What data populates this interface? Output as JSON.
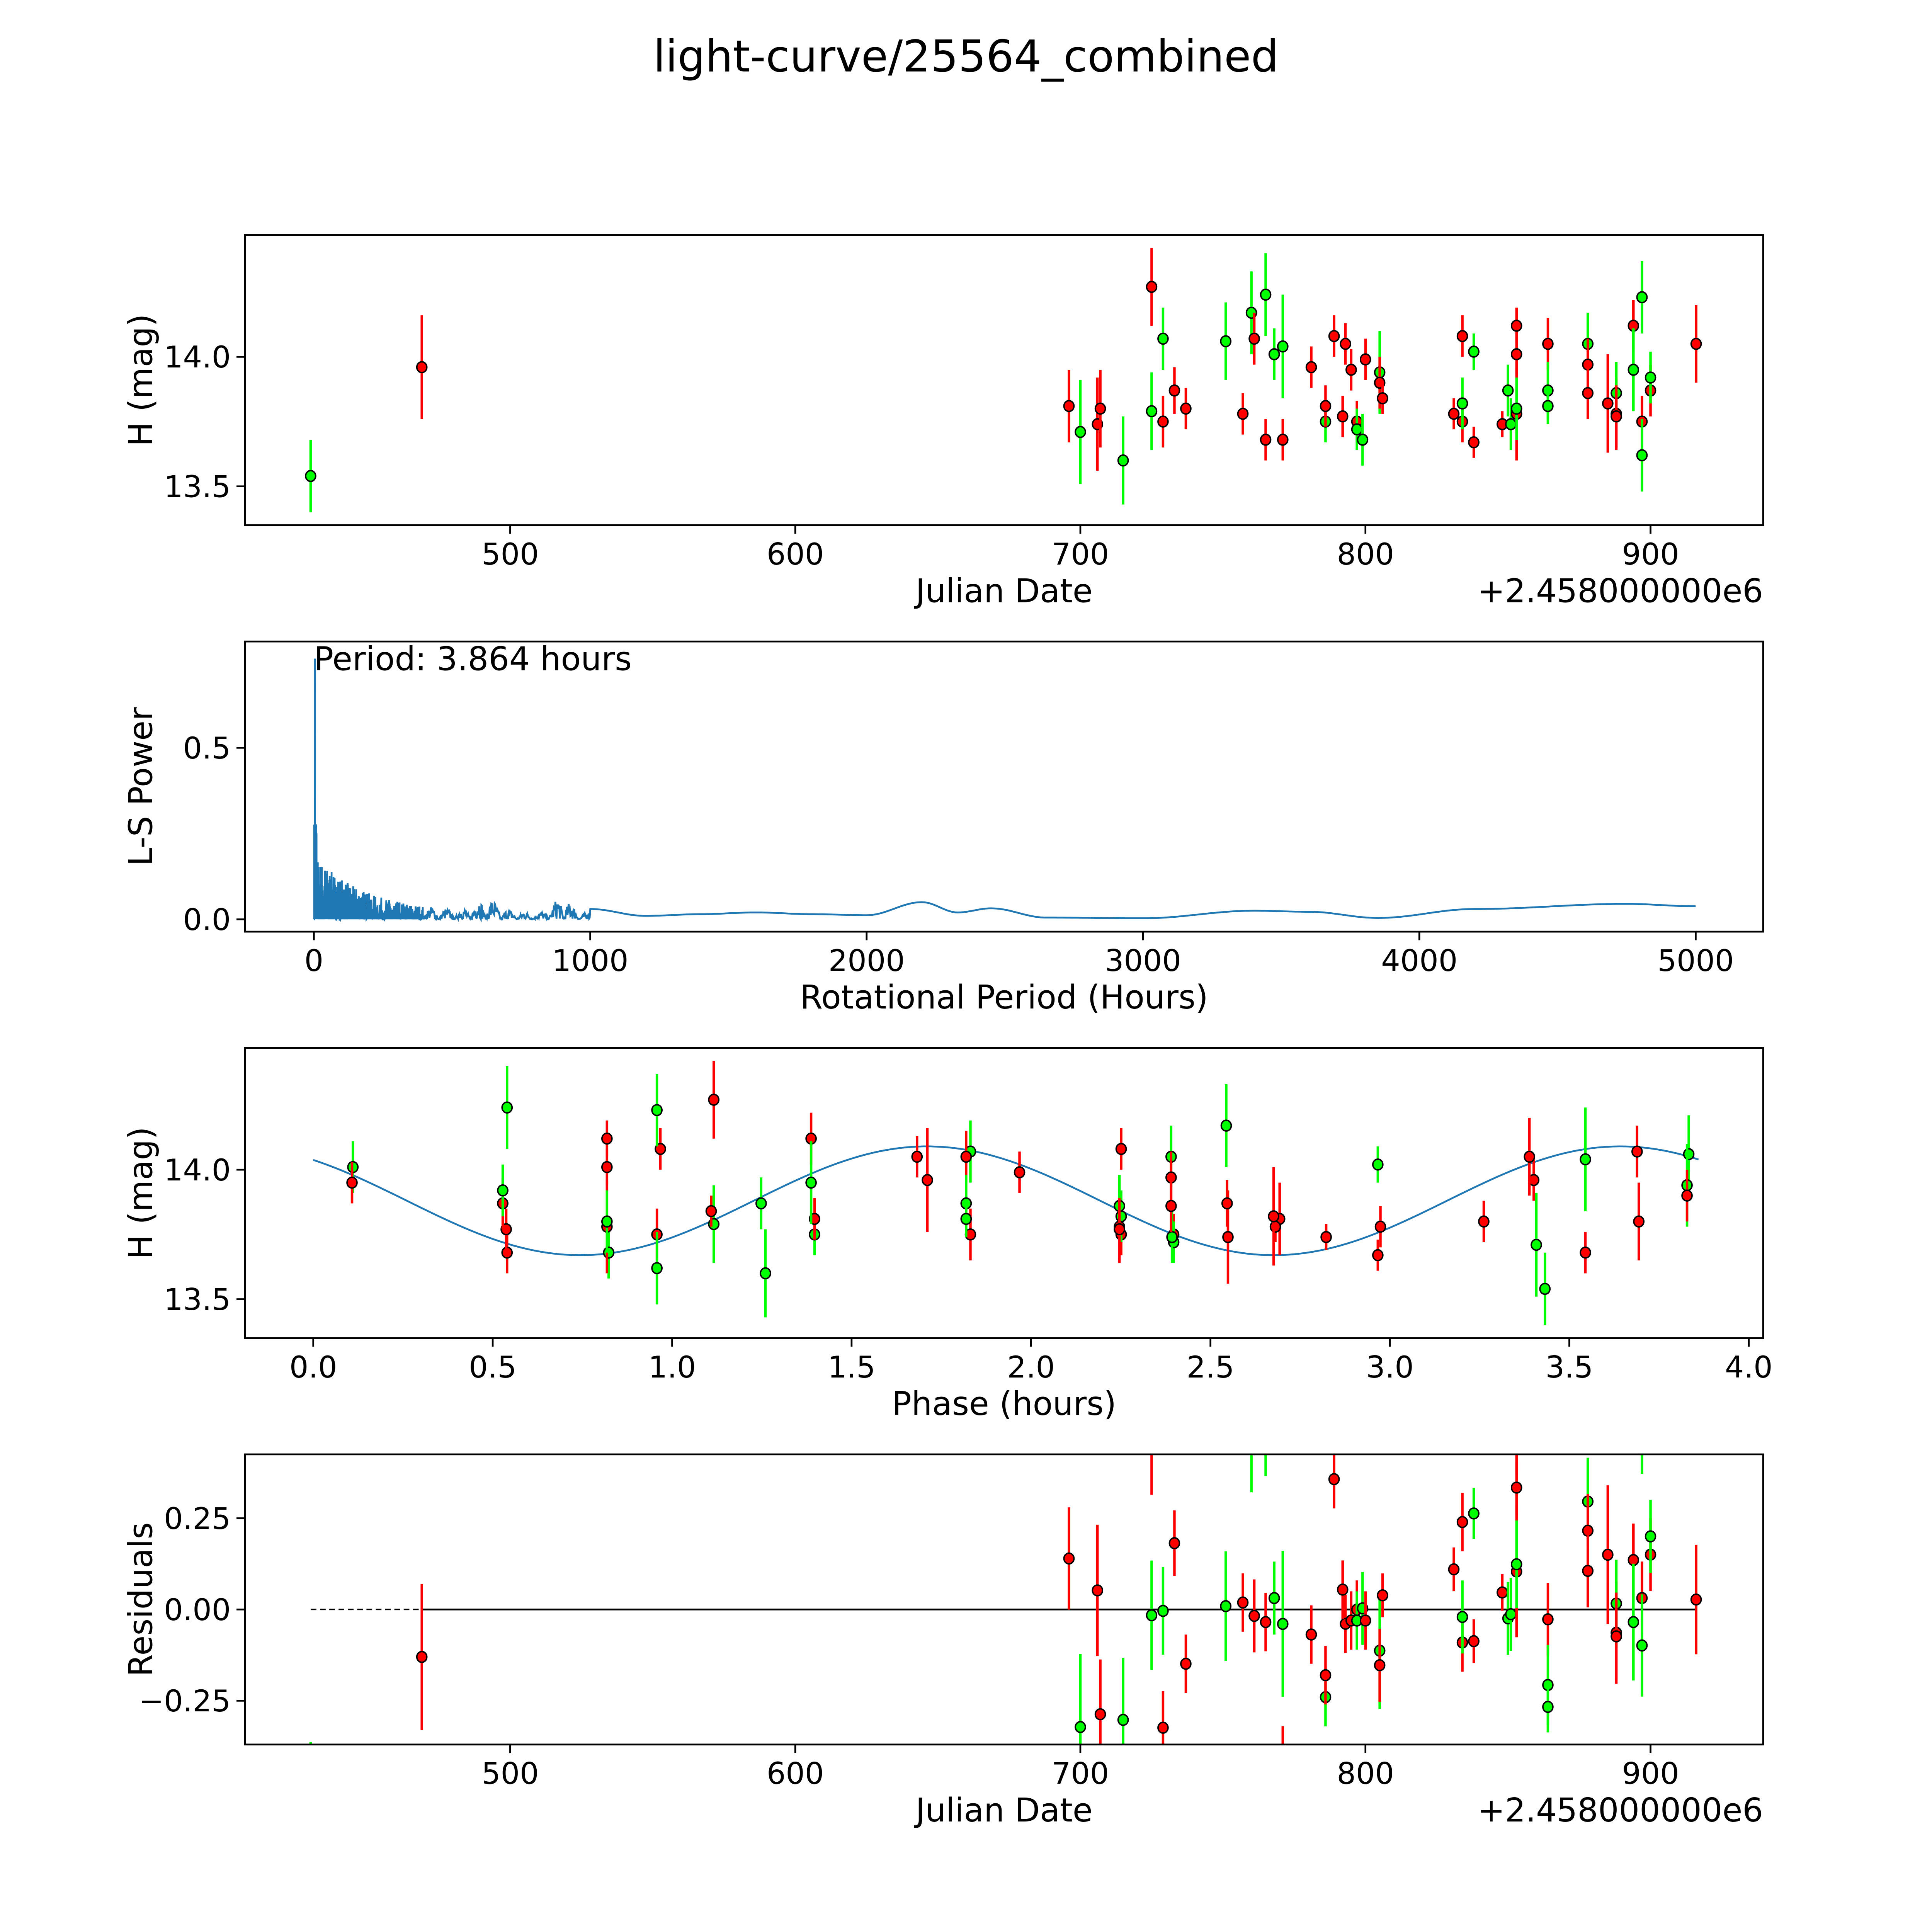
{
  "chart_data": {
    "type": "scatter",
    "title": "light-curve/25564_combined",
    "colors": {
      "r": "#ff0000",
      "g": "#00ff00",
      "model": "#1f77b4",
      "edge": "#000000"
    },
    "observations_note_format": "[julian_date_minus_offset, H_mag, error, filter_color]",
    "observations": [
      [
        430,
        13.54,
        0.14,
        "g"
      ],
      [
        469,
        13.96,
        0.2,
        "r"
      ],
      [
        696,
        13.81,
        0.14,
        "r"
      ],
      [
        700,
        13.71,
        0.2,
        "g"
      ],
      [
        706,
        13.74,
        0.18,
        "r"
      ],
      [
        707,
        13.8,
        0.15,
        "r"
      ],
      [
        715,
        13.6,
        0.17,
        "g"
      ],
      [
        725,
        14.27,
        0.15,
        "r"
      ],
      [
        725,
        13.79,
        0.15,
        "g"
      ],
      [
        729,
        14.07,
        0.12,
        "g"
      ],
      [
        729,
        13.75,
        0.1,
        "r"
      ],
      [
        733,
        13.87,
        0.09,
        "r"
      ],
      [
        737,
        13.8,
        0.08,
        "r"
      ],
      [
        751,
        14.06,
        0.15,
        "g"
      ],
      [
        757,
        13.78,
        0.08,
        "r"
      ],
      [
        760,
        14.17,
        0.16,
        "g"
      ],
      [
        761,
        14.07,
        0.1,
        "r"
      ],
      [
        765,
        14.24,
        0.16,
        "g"
      ],
      [
        765,
        13.68,
        0.08,
        "r"
      ],
      [
        768,
        14.01,
        0.1,
        "g"
      ],
      [
        771,
        14.04,
        0.2,
        "g"
      ],
      [
        771,
        13.68,
        0.08,
        "r"
      ],
      [
        781,
        13.96,
        0.08,
        "r"
      ],
      [
        786,
        13.75,
        0.08,
        "g"
      ],
      [
        786,
        13.81,
        0.08,
        "r"
      ],
      [
        789,
        14.08,
        0.08,
        "r"
      ],
      [
        793,
        14.05,
        0.08,
        "r"
      ],
      [
        792,
        13.77,
        0.08,
        "r"
      ],
      [
        795,
        13.95,
        0.08,
        "r"
      ],
      [
        797,
        13.75,
        0.08,
        "r"
      ],
      [
        797,
        13.72,
        0.08,
        "g"
      ],
      [
        799,
        13.68,
        0.1,
        "g"
      ],
      [
        800,
        13.99,
        0.08,
        "r"
      ],
      [
        805,
        13.94,
        0.16,
        "g"
      ],
      [
        805,
        13.9,
        0.1,
        "r"
      ],
      [
        806,
        13.84,
        0.06,
        "r"
      ],
      [
        831,
        13.78,
        0.06,
        "r"
      ],
      [
        834,
        13.75,
        0.08,
        "r"
      ],
      [
        834,
        13.82,
        0.1,
        "g"
      ],
      [
        834,
        14.08,
        0.08,
        "r"
      ],
      [
        838,
        14.02,
        0.07,
        "g"
      ],
      [
        838,
        13.67,
        0.06,
        "r"
      ],
      [
        848,
        13.74,
        0.05,
        "r"
      ],
      [
        850,
        13.87,
        0.1,
        "g"
      ],
      [
        851,
        13.74,
        0.1,
        "g"
      ],
      [
        853,
        13.78,
        0.18,
        "r"
      ],
      [
        853,
        13.8,
        0.12,
        "g"
      ],
      [
        853,
        14.01,
        0.07,
        "r"
      ],
      [
        853,
        14.12,
        0.07,
        "r"
      ],
      [
        864,
        14.05,
        0.1,
        "r"
      ],
      [
        864,
        13.87,
        0.11,
        "g"
      ],
      [
        864,
        13.81,
        0.07,
        "g"
      ],
      [
        878,
        14.05,
        0.12,
        "g"
      ],
      [
        878,
        13.97,
        0.1,
        "r"
      ],
      [
        878,
        13.86,
        0.1,
        "r"
      ],
      [
        885,
        13.82,
        0.19,
        "r"
      ],
      [
        888,
        13.78,
        0.14,
        "r"
      ],
      [
        888,
        13.86,
        0.12,
        "g"
      ],
      [
        888,
        13.77,
        0.12,
        "r"
      ],
      [
        894,
        14.12,
        0.1,
        "r"
      ],
      [
        894,
        13.95,
        0.16,
        "g"
      ],
      [
        897,
        14.23,
        0.14,
        "g"
      ],
      [
        897,
        13.75,
        0.1,
        "r"
      ],
      [
        897,
        13.62,
        0.14,
        "g"
      ],
      [
        900,
        13.87,
        0.1,
        "r"
      ],
      [
        900,
        13.92,
        0.1,
        "g"
      ],
      [
        916,
        14.05,
        0.15,
        "r"
      ]
    ],
    "period_hours": 3.864,
    "model": {
      "mean": 13.88,
      "amplitude": 0.21,
      "peak_phase": 1.71,
      "harmonic_period_hours": 1.932
    },
    "periodogram": {
      "peak_period_hours": 3.864,
      "peak_power": 0.76,
      "noisy_region_max_hours": 1000,
      "smooth_keypoints": [
        [
          1000,
          0.03
        ],
        [
          1200,
          0.01
        ],
        [
          1400,
          0.015
        ],
        [
          1600,
          0.02
        ],
        [
          1800,
          0.015
        ],
        [
          2000,
          0.012
        ],
        [
          2200,
          0.05
        ],
        [
          2330,
          0.02
        ],
        [
          2450,
          0.032
        ],
        [
          2650,
          0.005
        ],
        [
          3000,
          0.003
        ],
        [
          3400,
          0.025
        ],
        [
          3600,
          0.022
        ],
        [
          3850,
          0.004
        ],
        [
          4200,
          0.03
        ],
        [
          4750,
          0.045
        ],
        [
          5000,
          0.038
        ]
      ]
    },
    "panels": [
      {
        "xlabel": "Julian Date",
        "ylabel": "H (mag)",
        "offset": "+2.458000000e6",
        "xlim": [
          407,
          939.5
        ],
        "ylim": [
          13.35,
          14.47
        ],
        "xticks": [
          500,
          600,
          700,
          800,
          900
        ],
        "xtick_labels": [
          "500",
          "600",
          "700",
          "800",
          "900"
        ],
        "yticks": [
          13.5,
          14.0
        ],
        "ytick_labels": [
          "13.5",
          "14.0"
        ]
      },
      {
        "xlabel": "Rotational Period (Hours)",
        "ylabel": "L-S Power",
        "annotation": "Period: 3.864 hours",
        "xlim": [
          -249,
          5244
        ],
        "ylim": [
          -0.036,
          0.81
        ],
        "xticks": [
          0,
          1000,
          2000,
          3000,
          4000,
          5000
        ],
        "xtick_labels": [
          "0",
          "1000",
          "2000",
          "3000",
          "4000",
          "5000"
        ],
        "yticks": [
          0.0,
          0.5
        ],
        "ytick_labels": [
          "0.0",
          "0.5"
        ]
      },
      {
        "xlabel": "Phase (hours)",
        "ylabel": "H (mag)",
        "xlim": [
          -0.19,
          4.04
        ],
        "ylim": [
          13.35,
          14.47
        ],
        "xticks": [
          0,
          0.5,
          1,
          1.5,
          2,
          2.5,
          3,
          3.5,
          4
        ],
        "xtick_labels": [
          "0.0",
          "0.5",
          "1.0",
          "1.5",
          "2.0",
          "2.5",
          "3.0",
          "3.5",
          "4.0"
        ],
        "yticks": [
          13.5,
          14.0
        ],
        "ytick_labels": [
          "13.5",
          "14.0"
        ]
      },
      {
        "xlabel": "Julian Date",
        "ylabel": "Residuals",
        "offset": "+2.458000000e6",
        "xlim": [
          407,
          939.5
        ],
        "ylim": [
          -0.37,
          0.425
        ],
        "xticks": [
          500,
          600,
          700,
          800,
          900
        ],
        "xtick_labels": [
          "500",
          "600",
          "700",
          "800",
          "900"
        ],
        "yticks": [
          -0.25,
          0,
          0.25
        ],
        "ytick_labels": [
          "−0.25",
          "0.00",
          "0.25"
        ]
      }
    ]
  }
}
